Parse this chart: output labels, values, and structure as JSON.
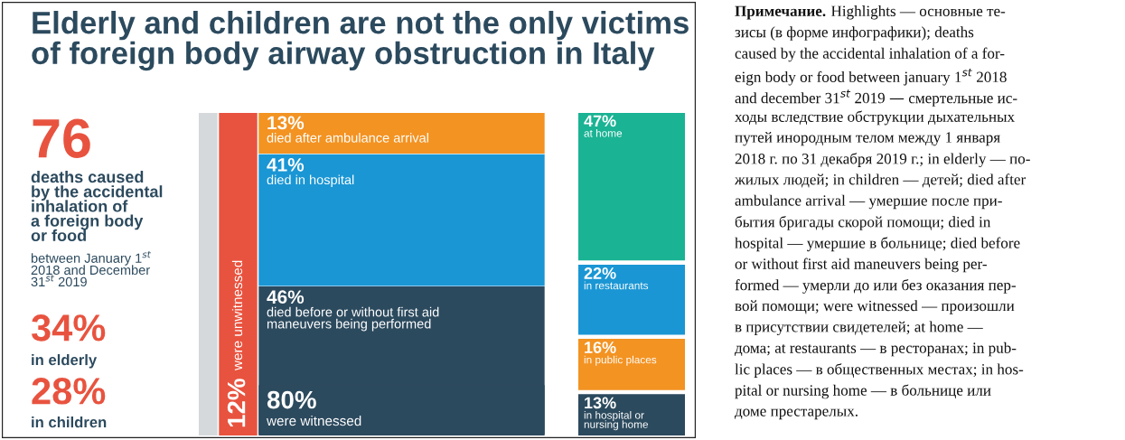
{
  "chart_data": [
    {
      "type": "other",
      "title": "Elderly and children are not the only victims\nof foreign body airway obstruction in Italy",
      "annotations": [
        "76",
        "deaths caused\nby the accidental\ninhalation of\na foreign body\nor food",
        "between January 1$^{st}$\n2018 and December\n31$^{st}$ 2019",
        "34%",
        "in elderly",
        "28%",
        "in children"
      ]
    },
    {
      "type": "other",
      "categories": [
        "were unwitnessed",
        "died after ambulance arrival",
        "died in hospital",
        "died before or without first aid\nmaneuvers being performed",
        "were witnessed"
      ],
      "values": [
        12,
        13,
        41,
        46,
        80
      ],
      "value_labels": [
        "12%",
        "13%",
        "41%",
        "46%",
        "80%"
      ],
      "colors": [
        "#e8533f",
        "#f39322",
        "#1a96d4",
        "#2c4a5e",
        "#2c4a5e"
      ]
    },
    {
      "type": "other",
      "categories": [
        "at home",
        "in restaurants",
        "in public places",
        "in hospital or\nnursing home"
      ],
      "values": [
        47,
        22,
        16,
        13
      ],
      "value_labels": [
        "47%",
        "22%",
        "16%",
        "13%"
      ],
      "colors": [
        "#1ab394",
        "#1a96d4",
        "#f39322",
        "#2c4a5e"
      ]
    },
    {
      "type": "other",
      "annotations": [
        "Примечание.",
        "Highlights — основные те-",
        "зисы (в форме инфографики); deaths",
        "caused by the accidental inhalation of a for-",
        "eign body or food between january 1$^{st}$ 2018",
        "and december 31$^{st}$ 2019 — смертельные ис-",
        "ходы вследствие обструкции дыхательных",
        "путей инородным телом между 1 января",
        "2018 г. по 31 декабря 2019 г.; in elderly — по-",
        "жилых людей; in children — детей; died after",
        "ambulance arrival — умершие после при-",
        "бытия бригады скорой помощи; died in",
        "hospital — умершие в больнице; died before",
        "or without first aid maneuvers being per-",
        "formed — умерли до или без оказания пер-",
        "вой помощи; were witnessed — произошли",
        "в присутствии свидетелей; at home —",
        "дома; at restaurants — в ресторанах; in pub-",
        "lic places — в общественных местах; in hos-",
        "pital or nursing home — в больнице или",
        "доме престарелых."
      ]
    }
  ]
}
